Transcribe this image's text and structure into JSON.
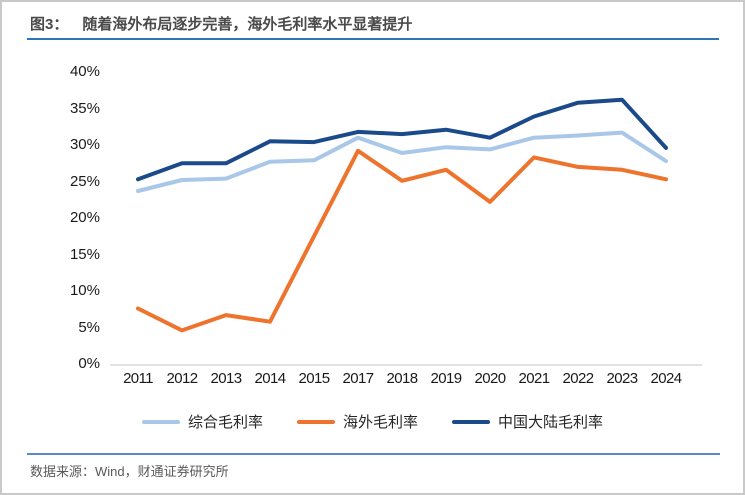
{
  "header": {
    "figure_label": "图3：",
    "title": "随着海外布局逐步完善，海外毛利率水平显著提升"
  },
  "footer": {
    "source": "数据来源：Wind，财通证券研究所"
  },
  "colors": {
    "composite_line": "#A9C7E9",
    "overseas_line": "#EE732D",
    "mainland_line": "#1B4A8A",
    "title_underline": "#2E75B6",
    "footer_rule": "#5B88C8",
    "axis_line": "#D9D9D9"
  },
  "chart_data": {
    "type": "line",
    "title": "随着海外布局逐步完善，海外毛利率水平显著提升",
    "categories": [
      "2011",
      "2012",
      "2013",
      "2014",
      "2015",
      "2017",
      "2018",
      "2019",
      "2020",
      "2021",
      "2022",
      "2023",
      "2024"
    ],
    "series": [
      {
        "key": "composite",
        "name": "综合毛利率",
        "color": "#A9C7E9",
        "values": [
          23.7,
          25.2,
          25.4,
          27.7,
          27.9,
          31.0,
          28.9,
          29.7,
          29.4,
          31.0,
          31.3,
          31.7,
          27.8
        ]
      },
      {
        "key": "overseas",
        "name": "海外毛利率",
        "color": "#EE732D",
        "values": [
          7.6,
          4.6,
          6.7,
          5.8,
          17.5,
          29.2,
          25.1,
          26.6,
          22.2,
          28.3,
          27.0,
          26.6,
          25.3
        ]
      },
      {
        "key": "mainland",
        "name": "中国大陆毛利率",
        "color": "#1B4A8A",
        "values": [
          25.3,
          27.5,
          27.5,
          30.5,
          30.4,
          31.8,
          31.5,
          32.1,
          31.0,
          33.9,
          35.8,
          36.2,
          29.6
        ]
      }
    ],
    "xlabel": "",
    "ylabel": "",
    "ylim": [
      0,
      40
    ],
    "ytick_step": 5,
    "ytick_suffix": "%",
    "grid": false,
    "legend_position": "bottom"
  }
}
